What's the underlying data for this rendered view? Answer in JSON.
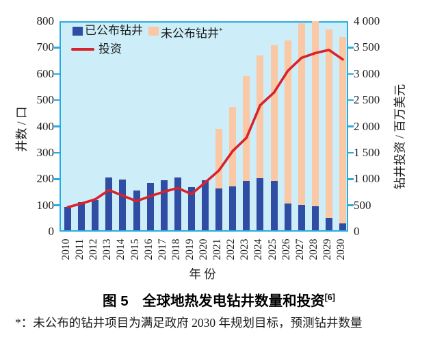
{
  "figure": {
    "title": "图 5　全球地热发电钻井数量和投资",
    "title_sup": "[6]",
    "footnote": "*：未公布的钻井项目为满足政府 2030 年规划目标，预测钻井数量"
  },
  "chart_data": {
    "type": "bar",
    "subtype": "stacked-bars-with-line",
    "x": [
      2010,
      2011,
      2012,
      2013,
      2014,
      2015,
      2016,
      2017,
      2018,
      2019,
      2020,
      2021,
      2022,
      2023,
      2024,
      2025,
      2026,
      2027,
      2028,
      2029,
      2030
    ],
    "series": [
      {
        "name": "已公布钻井",
        "type": "bar",
        "axis": "left",
        "color": "#2F4DA2",
        "values": [
          90,
          106,
          116,
          202,
          192,
          152,
          180,
          190,
          202,
          164,
          190,
          159,
          167,
          188,
          199,
          188,
          102,
          97,
          92,
          47,
          27
        ]
      },
      {
        "name": "未公布钻井*",
        "type": "bar",
        "axis": "left",
        "color": "#FAC8A5",
        "values": [
          0,
          0,
          0,
          0,
          0,
          0,
          0,
          0,
          0,
          0,
          0,
          226,
          303,
          398,
          466,
          517,
          621,
          690,
          703,
          718,
          708
        ]
      },
      {
        "name": "投资",
        "type": "line",
        "axis": "right",
        "color": "#D8232A",
        "values": [
          490,
          560,
          640,
          815,
          710,
          605,
          700,
          785,
          855,
          740,
          960,
          1190,
          1560,
          1810,
          2430,
          2670,
          3080,
          3330,
          3420,
          3480,
          3300
        ]
      }
    ],
    "left_axis": {
      "label": "井数 / 口",
      "min": 0,
      "max": 800,
      "step": 100,
      "tick_labels": [
        "0",
        "100",
        "200",
        "300",
        "400",
        "500",
        "600",
        "700",
        "800"
      ]
    },
    "right_axis": {
      "label": "钻井投资 / 百万美元",
      "min": 0,
      "max": 4000,
      "step": 500,
      "tick_labels": [
        "0",
        "500",
        "1 000",
        "1 500",
        "2 000",
        "2 500",
        "3 000",
        "3 500",
        "4 000"
      ]
    },
    "x_axis": {
      "label": "年 份"
    },
    "legend": {
      "position": "top-left-inside",
      "items": [
        {
          "label": "已公布钻井",
          "sup": "",
          "swatch": "square",
          "color": "#2F4DA2"
        },
        {
          "label": "未公布钻井",
          "sup": "*",
          "swatch": "square",
          "color": "#FAC8A5"
        },
        {
          "label": "投资",
          "sup": "",
          "swatch": "line",
          "color": "#D8232A"
        }
      ]
    },
    "grid": false,
    "plot_bg": "#CDEDF8",
    "frame_color": "#29ABE2"
  }
}
